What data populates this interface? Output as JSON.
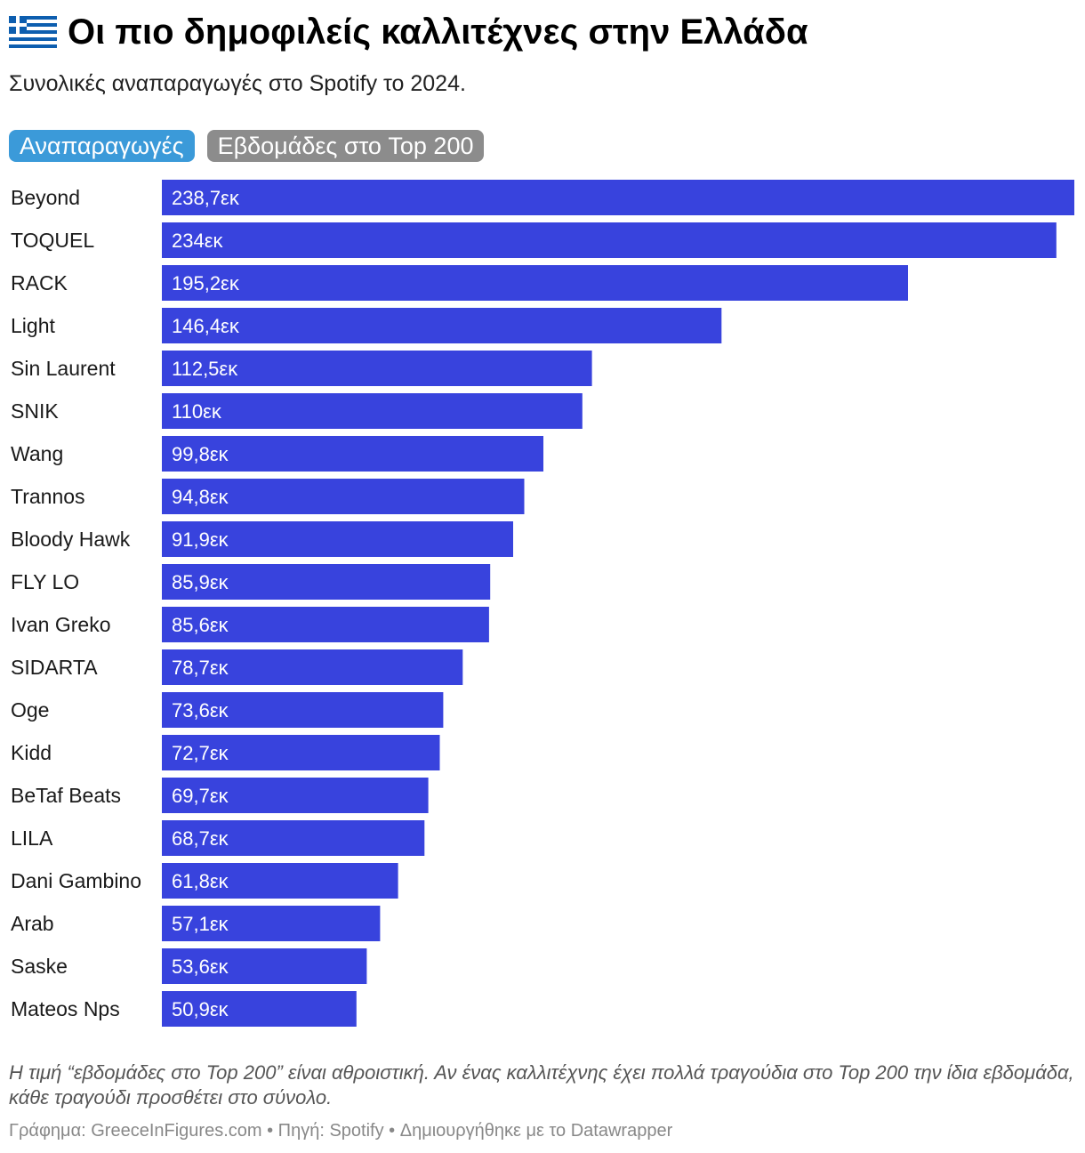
{
  "header": {
    "title": "Οι πιο δημοφιλείς καλλιτέχνες στην Ελλάδα",
    "subtitle": "Συνολικές αναπαραγωγές στο Spotify το 2024.",
    "flag_icon": "greece-flag-icon"
  },
  "tabs": [
    {
      "label": "Αναπαραγωγές",
      "active": true
    },
    {
      "label": "Εβδομάδες στο Top 200",
      "active": false
    }
  ],
  "colors": {
    "bar": "#3843dd",
    "active_tab": "#3b9ad9",
    "inactive_tab": "#8c8c8c",
    "flag_blue": "#0d5eaf"
  },
  "chart_data": {
    "type": "bar",
    "orientation": "horizontal",
    "categories": [
      "Beyond",
      "TOQUEL",
      "RACK",
      "Light",
      "Sin Laurent",
      "SNIK",
      "Wang",
      "Trannos",
      "Bloody Hawk",
      "FLY LO",
      "Ivan Greko",
      "SIDARTA",
      "Oge",
      "Kidd",
      "BeTaf Beats",
      "LILA",
      "Dani Gambino",
      "Arab",
      "Saske",
      "Mateos Nps"
    ],
    "values": [
      238.7,
      234,
      195.2,
      146.4,
      112.5,
      110,
      99.8,
      94.8,
      91.9,
      85.9,
      85.6,
      78.7,
      73.6,
      72.7,
      69.7,
      68.7,
      61.8,
      57.1,
      53.6,
      50.9
    ],
    "labels": [
      "238,7εκ",
      "234εκ",
      "195,2εκ",
      "146,4εκ",
      "112,5εκ",
      "110εκ",
      "99,8εκ",
      "94,8εκ",
      "91,9εκ",
      "85,9εκ",
      "85,6εκ",
      "78,7εκ",
      "73,6εκ",
      "72,7εκ",
      "69,7εκ",
      "68,7εκ",
      "61,8εκ",
      "57,1εκ",
      "53,6εκ",
      "50,9εκ"
    ],
    "xlim": [
      0,
      238.7
    ],
    "grid": false,
    "legend": "none"
  },
  "notes": "Η τιμή “εβδομάδες στο Top 200” είναι αθροιστική. Αν ένας καλλιτέχνης έχει πολλά τραγούδια στο Top 200 την ίδια εβδομάδα, κάθε τραγούδι προσθέτει στο σύνολο.",
  "footer": "Γράφημα: GreeceInFigures.com • Πηγή: Spotify • Δημιουργήθηκε με το Datawrapper"
}
